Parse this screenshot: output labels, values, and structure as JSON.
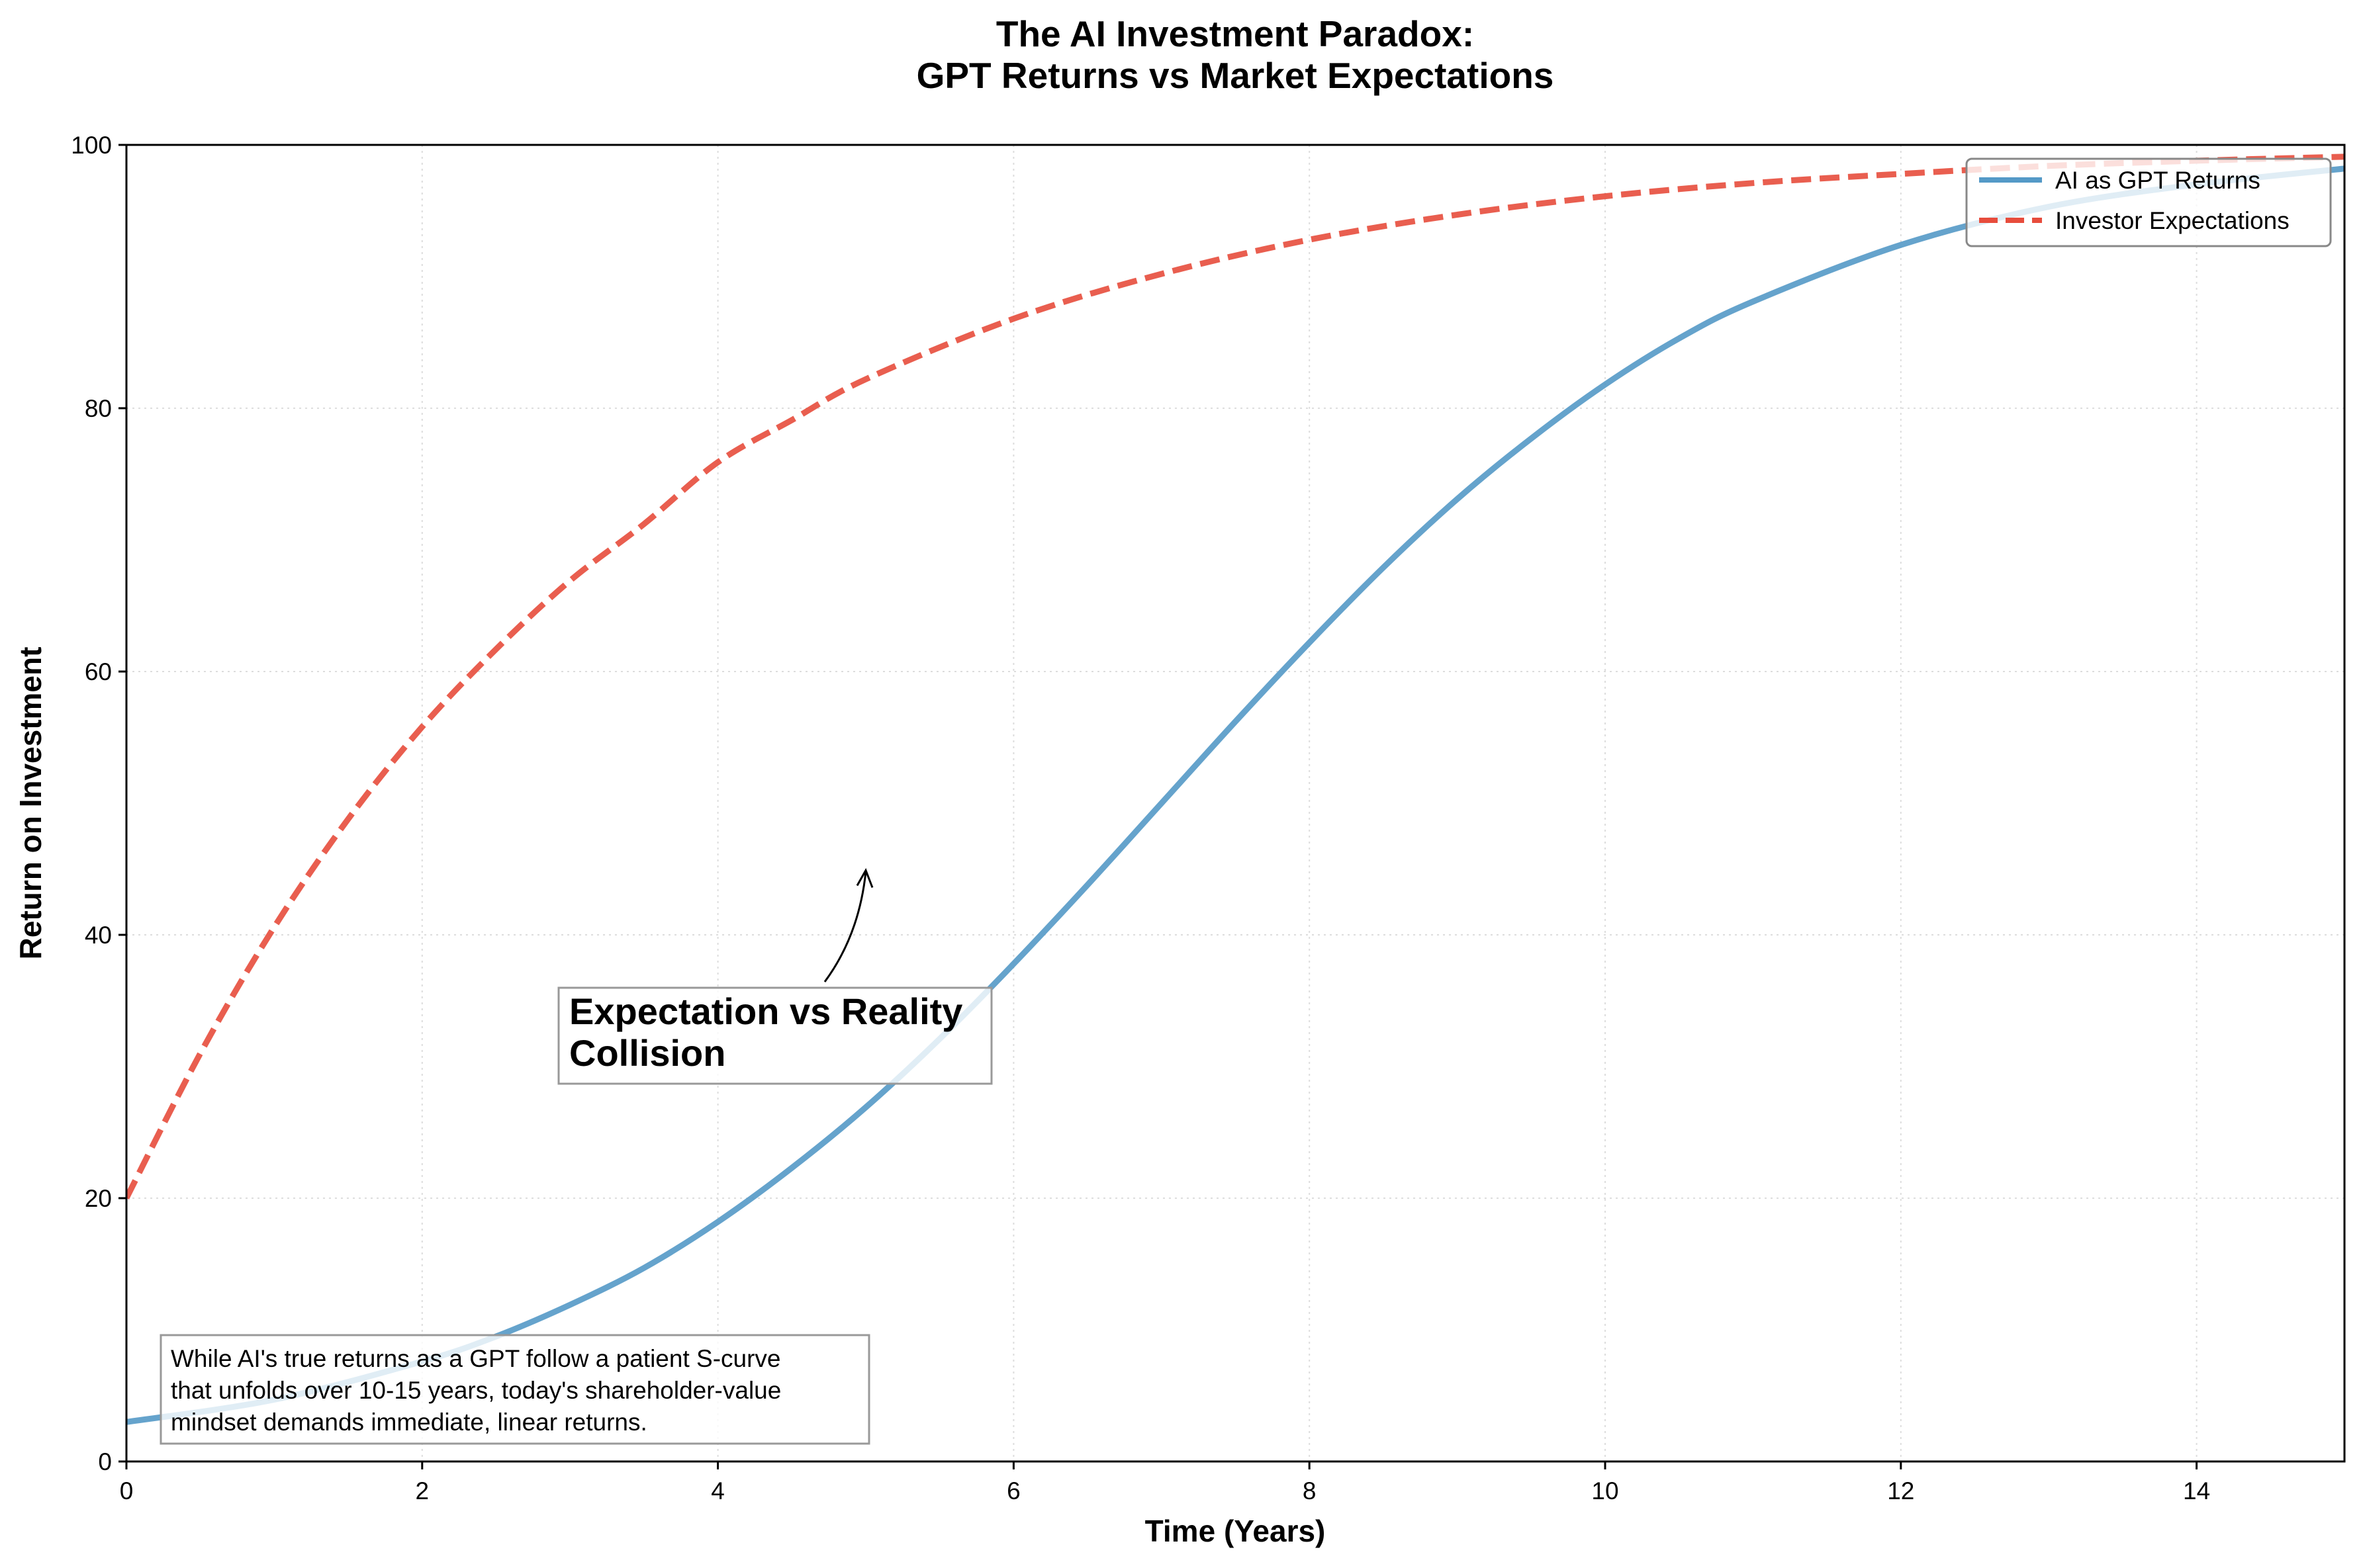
{
  "chart_data": {
    "type": "line",
    "title": [
      "The AI Investment Paradox:",
      "GPT Returns vs Market Expectations"
    ],
    "xlabel": "Time (Years)",
    "ylabel": "Return on Investment",
    "xlim": [
      0,
      15
    ],
    "ylim": [
      0,
      100
    ],
    "xticks": [
      0,
      2,
      4,
      6,
      8,
      10,
      12,
      14
    ],
    "yticks": [
      0,
      20,
      40,
      60,
      80,
      100
    ],
    "grid": true,
    "legend_position": "top-right",
    "series": [
      {
        "name": "AI as GPT Returns",
        "color": "#5499c7",
        "style": "solid",
        "x": [
          0,
          1,
          2,
          2.5,
          3,
          3.5,
          4,
          4.5,
          5,
          5.5,
          6,
          6.5,
          7,
          7.5,
          8,
          8.5,
          9,
          9.5,
          10,
          10.5,
          11,
          12,
          13,
          14,
          15
        ],
        "y": [
          3,
          4.7,
          7.6,
          9.5,
          11.9,
          14.7,
          18.2,
          22.3,
          26.9,
          32.1,
          37.8,
          43.8,
          50,
          56.2,
          62.2,
          67.9,
          73.1,
          77.7,
          81.8,
          85.3,
          88.1,
          92.4,
          95.3,
          97,
          98.2
        ]
      },
      {
        "name": "Investor Expectations",
        "color": "#e74c3c",
        "style": "dashed",
        "x": [
          0,
          0.5,
          1,
          1.5,
          2,
          2.5,
          3,
          3.5,
          4,
          4.5,
          5,
          6,
          7,
          8,
          9,
          10,
          11,
          12,
          13,
          14,
          15
        ],
        "y": [
          20,
          31,
          40.6,
          48.8,
          55.8,
          61.7,
          66.9,
          71.2,
          75.9,
          79.1,
          82.2,
          86.8,
          90.2,
          92.8,
          94.7,
          96.1,
          97.1,
          97.8,
          98.4,
          98.8,
          99.1
        ]
      }
    ],
    "annotations": [
      {
        "text": [
          "Expectation vs Reality",
          "Collision"
        ],
        "xy": [
          5,
          45
        ],
        "xytext": [
          3,
          30
        ]
      },
      {
        "text": [
          "While AI's true returns as a GPT follow a patient S-curve",
          "that unfolds over 10-15 years, today's shareholder-value",
          "mindset demands immediate, linear returns."
        ]
      }
    ]
  }
}
